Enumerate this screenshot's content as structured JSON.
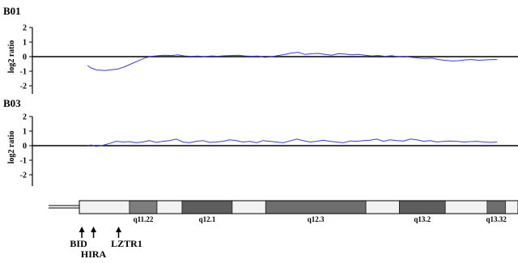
{
  "chart_data": [
    {
      "type": "line",
      "title": "B01",
      "ylabel": "log2 ratio",
      "ylim": [
        -2,
        2
      ],
      "yticks": [
        "2",
        "1",
        "0",
        "-1",
        "-2"
      ],
      "color": "#3b3bd6",
      "x": [
        0.1,
        0.13,
        0.2,
        0.3,
        0.38,
        0.46,
        0.54,
        0.62,
        0.7,
        0.78,
        0.86,
        0.94,
        1.02,
        1.1,
        1.18,
        1.26,
        1.34,
        1.42,
        1.5,
        1.58,
        1.66,
        1.74,
        1.82,
        1.9,
        1.98,
        2.06,
        2.14,
        2.22,
        2.3,
        2.38,
        2.46,
        2.54,
        2.62,
        2.7,
        2.78,
        2.86,
        2.94,
        3.02,
        3.1,
        3.18,
        3.26,
        3.34,
        3.42,
        3.5,
        3.58,
        3.66,
        3.74,
        3.82,
        3.9,
        3.98,
        4.06,
        4.14,
        4.22,
        4.3,
        4.38,
        4.46,
        4.54,
        4.62,
        4.7,
        4.78,
        4.86,
        4.94,
        5.0
      ],
      "values": [
        -0.6,
        -0.75,
        -0.9,
        -0.95,
        -0.9,
        -0.85,
        -0.7,
        -0.5,
        -0.3,
        -0.1,
        0.02,
        0.06,
        0.1,
        0.08,
        0.12,
        0.05,
        0.02,
        0.04,
        0.0,
        0.05,
        0.03,
        0.06,
        0.08,
        0.1,
        0.05,
        0.03,
        0.04,
        -0.05,
        0.0,
        0.08,
        0.15,
        0.25,
        0.3,
        0.15,
        0.2,
        0.22,
        0.15,
        0.1,
        0.2,
        0.18,
        0.12,
        0.15,
        0.1,
        0.05,
        0.08,
        0.02,
        0.06,
        0.0,
        0.02,
        -0.05,
        -0.1,
        -0.12,
        -0.1,
        -0.2,
        -0.25,
        -0.3,
        -0.28,
        -0.22,
        -0.2,
        -0.25,
        -0.22,
        -0.2,
        -0.2
      ]
    },
    {
      "type": "line",
      "title": "B03",
      "ylabel": "log2 ratio",
      "ylim": [
        -2,
        2
      ],
      "yticks": [
        "2",
        "1",
        "0",
        "-1",
        "-2"
      ],
      "color": "#3b3bd6",
      "x": [
        0.1,
        0.14,
        0.2,
        0.28,
        0.36,
        0.44,
        0.52,
        0.6,
        0.68,
        0.76,
        0.84,
        0.92,
        1.0,
        1.08,
        1.16,
        1.24,
        1.32,
        1.4,
        1.48,
        1.56,
        1.64,
        1.72,
        1.8,
        1.88,
        1.96,
        2.04,
        2.12,
        2.2,
        2.28,
        2.36,
        2.44,
        2.52,
        2.6,
        2.68,
        2.76,
        2.84,
        2.92,
        3.0,
        3.08,
        3.16,
        3.24,
        3.32,
        3.4,
        3.48,
        3.56,
        3.64,
        3.72,
        3.8,
        3.88,
        3.96,
        4.04,
        4.12,
        4.2,
        4.28,
        4.36,
        4.44,
        4.52,
        4.6,
        4.68,
        4.76,
        4.84,
        4.92,
        5.0
      ],
      "values": [
        0.0,
        0.05,
        -0.05,
        0.02,
        0.15,
        0.3,
        0.25,
        0.28,
        0.2,
        0.25,
        0.35,
        0.22,
        0.3,
        0.35,
        0.45,
        0.25,
        0.2,
        0.3,
        0.35,
        0.22,
        0.25,
        0.3,
        0.4,
        0.35,
        0.25,
        0.3,
        0.2,
        0.35,
        0.3,
        0.25,
        0.2,
        0.32,
        0.45,
        0.35,
        0.25,
        0.3,
        0.38,
        0.3,
        0.25,
        0.2,
        0.32,
        0.3,
        0.35,
        0.38,
        0.45,
        0.3,
        0.4,
        0.35,
        0.32,
        0.45,
        0.4,
        0.3,
        0.35,
        0.25,
        0.3,
        0.32,
        0.3,
        0.25,
        0.28,
        0.3,
        0.25,
        0.22,
        0.25
      ]
    }
  ],
  "ideogram": {
    "bands": [
      {
        "label": "",
        "start": 0.0,
        "end": 0.6,
        "shade": "#f2f2f2"
      },
      {
        "label": "q11.22",
        "start": 0.6,
        "end": 0.93,
        "shade": "#7d7d7d"
      },
      {
        "label": "",
        "start": 0.93,
        "end": 1.23,
        "shade": "#f2f2f2"
      },
      {
        "label": "q12.1",
        "start": 1.23,
        "end": 1.83,
        "shade": "#5e5e5e"
      },
      {
        "label": "",
        "start": 1.83,
        "end": 2.23,
        "shade": "#f2f2f2"
      },
      {
        "label": "q12.3",
        "start": 2.23,
        "end": 3.43,
        "shade": "#6e6e6e"
      },
      {
        "label": "",
        "start": 3.43,
        "end": 3.83,
        "shade": "#f2f2f2"
      },
      {
        "label": "q13.2",
        "start": 3.83,
        "end": 4.38,
        "shade": "#5e5e5e"
      },
      {
        "label": "",
        "start": 4.38,
        "end": 4.88,
        "shade": "#f2f2f2"
      },
      {
        "label": "q13.32",
        "start": 4.88,
        "end": 5.1,
        "shade": "#6e6e6e"
      },
      {
        "label": "",
        "start": 5.1,
        "end": 5.25,
        "shade": "#f2f2f2"
      }
    ],
    "genes": [
      {
        "name": "BID",
        "pos": 0.03
      },
      {
        "name": "HIRA",
        "pos": 0.17
      },
      {
        "name": "LZTR1",
        "pos": 0.47
      }
    ]
  }
}
